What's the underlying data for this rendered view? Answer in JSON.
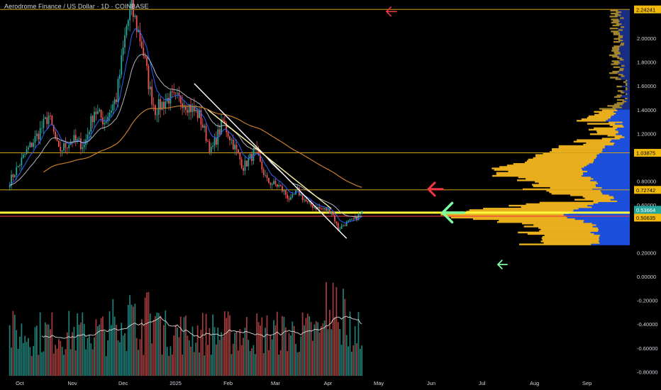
{
  "header": {
    "title": "Aerodrome Finance / US Dollar · 1D · COINBASE"
  },
  "colors": {
    "background": "#000000",
    "up_candle": "#26a69a",
    "down_candle": "#ef5350",
    "ema_fast": "#2962ff",
    "sma_mid": "#b2b5be",
    "ma_long": "#c77c2e",
    "trendline_white": "#ffffff",
    "trendline_yellow": "#fffb3a",
    "hline_orange": "#d4a017",
    "hline_red": "#f23645",
    "arrow_red": "#f23645",
    "arrow_green": "#7dffa0",
    "vp_yellow": "#f3b61f",
    "vp_blue": "#1e53e5"
  },
  "chart_data": {
    "type": "candlestick",
    "symbol": "AERO/USD",
    "interval": "1D",
    "exchange": "COINBASE",
    "x_labels": [
      "Oct",
      "Nov",
      "Dec",
      "2025",
      "Feb",
      "Mar",
      "Apr",
      "May",
      "Jun",
      "Jul",
      "Aug",
      "Sep"
    ],
    "y_ticks": [
      "2.00000",
      "1.80000",
      "1.60000",
      "1.40000",
      "1.20000",
      "0.80000",
      "0.60000",
      "0.20000",
      "0.00000",
      "-0.20000",
      "-0.40000",
      "-0.60000",
      "-0.80000"
    ],
    "ylim": [
      -0.8,
      2.25
    ],
    "price_keypoints": [
      [
        "2024-09-25",
        0.8
      ],
      [
        "2024-10-05",
        1.05
      ],
      [
        "2024-10-12",
        1.2
      ],
      [
        "2024-10-18",
        1.35
      ],
      [
        "2024-10-24",
        1.05
      ],
      [
        "2024-11-01",
        1.15
      ],
      [
        "2024-11-08",
        1.1
      ],
      [
        "2024-11-14",
        1.4
      ],
      [
        "2024-11-20",
        1.3
      ],
      [
        "2024-11-27",
        1.5
      ],
      [
        "2024-12-03",
        2.1
      ],
      [
        "2024-12-06",
        2.25
      ],
      [
        "2024-12-12",
        1.95
      ],
      [
        "2024-12-17",
        1.55
      ],
      [
        "2024-12-20",
        1.4
      ],
      [
        "2024-12-28",
        1.5
      ],
      [
        "2025-01-05",
        1.48
      ],
      [
        "2025-01-15",
        1.35
      ],
      [
        "2025-01-22",
        1.05
      ],
      [
        "2025-01-29",
        1.3
      ],
      [
        "2025-02-05",
        1.08
      ],
      [
        "2025-02-10",
        0.92
      ],
      [
        "2025-02-17",
        1.05
      ],
      [
        "2025-02-24",
        0.8
      ],
      [
        "2025-03-03",
        0.76
      ],
      [
        "2025-03-10",
        0.64
      ],
      [
        "2025-03-14",
        0.72
      ],
      [
        "2025-03-20",
        0.61
      ],
      [
        "2025-03-27",
        0.57
      ],
      [
        "2025-04-03",
        0.55
      ],
      [
        "2025-04-07",
        0.4
      ],
      [
        "2025-04-12",
        0.45
      ],
      [
        "2025-04-17",
        0.48
      ],
      [
        "2025-04-21",
        0.54
      ]
    ],
    "trendlines": [
      {
        "from": [
          "2025-01-12",
          1.62
        ],
        "to": [
          "2025-04-12",
          0.32
        ]
      },
      {
        "from": [
          "2025-01-20",
          1.4
        ],
        "to": [
          "2025-04-03",
          0.57
        ]
      }
    ],
    "horizontal_levels": [
      2.24241,
      1.03875,
      0.72742,
      0.53664,
      0.50635
    ],
    "price_labels": [
      {
        "value": 2.24241,
        "text": "2.24241"
      },
      {
        "value": 1.03875,
        "text": "1.03875"
      },
      {
        "value": 0.72742,
        "text": "0.72742"
      },
      {
        "value": 0.53664,
        "text": "0.53664"
      },
      {
        "value": 0.497,
        "text": "04:12:43"
      },
      {
        "value": 0.50635,
        "text": "0.50635"
      }
    ]
  }
}
